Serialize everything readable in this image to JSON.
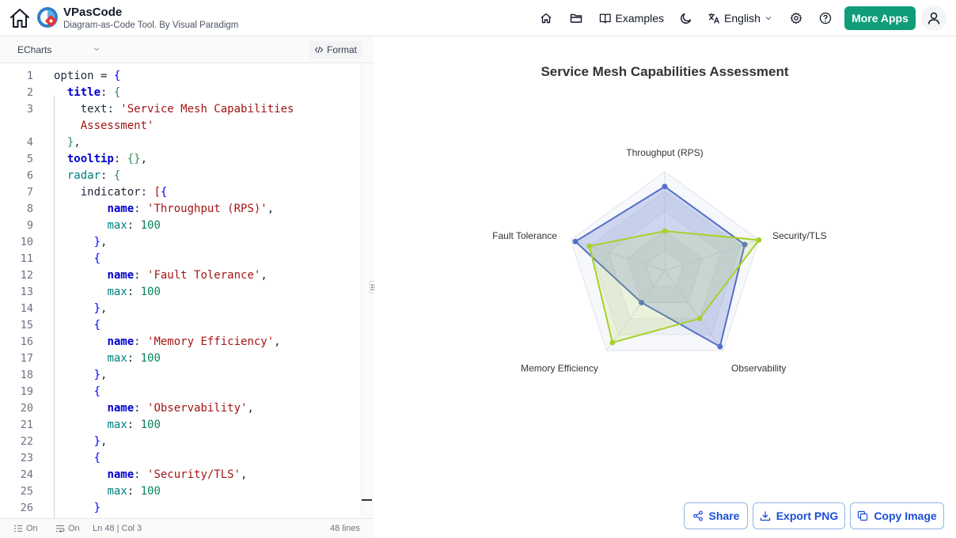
{
  "header": {
    "app_name": "VPasCode",
    "app_subtitle": "Diagram-as-Code Tool. By Visual Paradigm",
    "examples_label": "Examples",
    "language_label": "English",
    "more_apps_label": "More Apps"
  },
  "editor": {
    "language": "ECharts",
    "format_label": "Format",
    "lines": [
      {
        "n": "1",
        "parts": [
          [
            "option = ",
            ""
          ],
          [
            "{",
            "k-blue"
          ]
        ]
      },
      {
        "n": "2",
        "parts": [
          [
            "  ",
            ""
          ],
          [
            "title",
            "k-prop"
          ],
          [
            ": ",
            ""
          ],
          [
            "{",
            "k-green"
          ]
        ]
      },
      {
        "n": "3",
        "parts": [
          [
            "    text",
            ""
          ],
          [
            ": ",
            ""
          ],
          [
            "'Service Mesh Capabilities",
            "k-str"
          ]
        ]
      },
      {
        "n": "",
        "parts": [
          [
            "    ",
            ""
          ],
          [
            "Assessment'",
            "k-str"
          ]
        ]
      },
      {
        "n": "4",
        "parts": [
          [
            "  ",
            ""
          ],
          [
            "}",
            "k-green"
          ],
          [
            ",",
            ""
          ]
        ]
      },
      {
        "n": "5",
        "parts": [
          [
            "  ",
            ""
          ],
          [
            "tooltip",
            "k-prop"
          ],
          [
            ": ",
            ""
          ],
          [
            "{}",
            "k-green"
          ],
          [
            ",",
            ""
          ]
        ]
      },
      {
        "n": "6",
        "parts": [
          [
            "  ",
            ""
          ],
          [
            "radar",
            "k-teal"
          ],
          [
            ": ",
            ""
          ],
          [
            "{",
            "k-green"
          ]
        ]
      },
      {
        "n": "7",
        "parts": [
          [
            "    indicator: ",
            ""
          ],
          [
            "[",
            "k-str"
          ],
          [
            "{",
            "k-blue"
          ]
        ]
      },
      {
        "n": "8",
        "parts": [
          [
            "        ",
            ""
          ],
          [
            "name",
            "k-prop"
          ],
          [
            ": ",
            ""
          ],
          [
            "'Throughput (RPS)'",
            "k-str"
          ],
          [
            ",",
            ""
          ]
        ]
      },
      {
        "n": "9",
        "parts": [
          [
            "        ",
            ""
          ],
          [
            "max",
            "k-teal"
          ],
          [
            ": ",
            ""
          ],
          [
            "100",
            "k-num"
          ]
        ]
      },
      {
        "n": "10",
        "parts": [
          [
            "      ",
            ""
          ],
          [
            "}",
            "k-blue"
          ],
          [
            ",",
            ""
          ]
        ]
      },
      {
        "n": "11",
        "parts": [
          [
            "      ",
            ""
          ],
          [
            "{",
            "k-blue"
          ]
        ]
      },
      {
        "n": "12",
        "parts": [
          [
            "        ",
            ""
          ],
          [
            "name",
            "k-prop"
          ],
          [
            ": ",
            ""
          ],
          [
            "'Fault Tolerance'",
            "k-str"
          ],
          [
            ",",
            ""
          ]
        ]
      },
      {
        "n": "13",
        "parts": [
          [
            "        ",
            ""
          ],
          [
            "max",
            "k-teal"
          ],
          [
            ": ",
            ""
          ],
          [
            "100",
            "k-num"
          ]
        ]
      },
      {
        "n": "14",
        "parts": [
          [
            "      ",
            ""
          ],
          [
            "}",
            "k-blue"
          ],
          [
            ",",
            ""
          ]
        ]
      },
      {
        "n": "15",
        "parts": [
          [
            "      ",
            ""
          ],
          [
            "{",
            "k-blue"
          ]
        ]
      },
      {
        "n": "16",
        "parts": [
          [
            "        ",
            ""
          ],
          [
            "name",
            "k-prop"
          ],
          [
            ": ",
            ""
          ],
          [
            "'Memory Efficiency'",
            "k-str"
          ],
          [
            ",",
            ""
          ]
        ]
      },
      {
        "n": "17",
        "parts": [
          [
            "        ",
            ""
          ],
          [
            "max",
            "k-teal"
          ],
          [
            ": ",
            ""
          ],
          [
            "100",
            "k-num"
          ]
        ]
      },
      {
        "n": "18",
        "parts": [
          [
            "      ",
            ""
          ],
          [
            "}",
            "k-blue"
          ],
          [
            ",",
            ""
          ]
        ]
      },
      {
        "n": "19",
        "parts": [
          [
            "      ",
            ""
          ],
          [
            "{",
            "k-blue"
          ]
        ]
      },
      {
        "n": "20",
        "parts": [
          [
            "        ",
            ""
          ],
          [
            "name",
            "k-prop"
          ],
          [
            ": ",
            ""
          ],
          [
            "'Observability'",
            "k-str"
          ],
          [
            ",",
            ""
          ]
        ]
      },
      {
        "n": "21",
        "parts": [
          [
            "        ",
            ""
          ],
          [
            "max",
            "k-teal"
          ],
          [
            ": ",
            ""
          ],
          [
            "100",
            "k-num"
          ]
        ]
      },
      {
        "n": "22",
        "parts": [
          [
            "      ",
            ""
          ],
          [
            "}",
            "k-blue"
          ],
          [
            ",",
            ""
          ]
        ]
      },
      {
        "n": "23",
        "parts": [
          [
            "      ",
            ""
          ],
          [
            "{",
            "k-blue"
          ]
        ]
      },
      {
        "n": "24",
        "parts": [
          [
            "        ",
            ""
          ],
          [
            "name",
            "k-prop"
          ],
          [
            ": ",
            ""
          ],
          [
            "'Security/TLS'",
            "k-str"
          ],
          [
            ",",
            ""
          ]
        ]
      },
      {
        "n": "25",
        "parts": [
          [
            "        ",
            ""
          ],
          [
            "max",
            "k-teal"
          ],
          [
            ": ",
            ""
          ],
          [
            "100",
            "k-num"
          ]
        ]
      },
      {
        "n": "26",
        "parts": [
          [
            "      ",
            ""
          ],
          [
            "}",
            "k-blue"
          ]
        ]
      }
    ],
    "status": {
      "wrap": "On",
      "minimap": "On",
      "cursor": "Ln 48 | Col 3",
      "line_count": "48 lines"
    }
  },
  "chart_data": {
    "type": "radar",
    "title": "Service Mesh Capabilities Assessment",
    "indicators": [
      {
        "name": "Throughput (RPS)",
        "max": 100
      },
      {
        "name": "Security/TLS",
        "max": 100
      },
      {
        "name": "Observability",
        "max": 100
      },
      {
        "name": "Memory Efficiency",
        "max": 100
      },
      {
        "name": "Fault Tolerance",
        "max": 100
      }
    ],
    "series": [
      {
        "values": [
          85,
          85,
          95,
          40,
          95
        ],
        "color": "#5470c6"
      },
      {
        "values": [
          40,
          100,
          60,
          90,
          80
        ],
        "color": "#a5d12b"
      }
    ],
    "split_number": 5
  },
  "actions": {
    "share_label": "Share",
    "export_label": "Export PNG",
    "copy_label": "Copy Image"
  }
}
